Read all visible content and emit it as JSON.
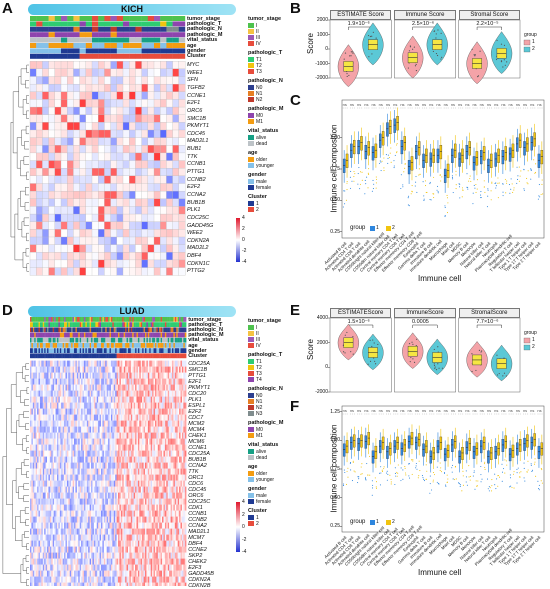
{
  "panels": {
    "A": "A",
    "B": "B",
    "C": "C",
    "D": "D",
    "E": "E",
    "F": "F"
  },
  "kich": {
    "title": "KICH",
    "annotation_rows": [
      "tumor_stage",
      "pathologic_T",
      "pathologic_N",
      "pathologic_M",
      "vital_status",
      "age",
      "gender",
      "Cluster"
    ],
    "genes": [
      "MYC",
      "WEE1",
      "SFN",
      "TGFB2",
      "CCNE1",
      "E2F1",
      "ORC6",
      "SMC1B",
      "PKMYT1",
      "CDC45",
      "MAD2L1",
      "BUB1",
      "TTK",
      "CCNB1",
      "PTTG1",
      "CCNB2",
      "E2F2",
      "CCNA2",
      "BUB1B",
      "PLK1",
      "CDC25C",
      "GADD45G",
      "WEE2",
      "CDKN2A",
      "MAD2L2",
      "DBF4",
      "CDKN1C",
      "PTTG2"
    ],
    "legend": {
      "tumor_stage": {
        "title": "tumor_stage",
        "items": [
          "I",
          "II",
          "III",
          "IV"
        ]
      },
      "pathologic_T": {
        "title": "pathologic_T",
        "items": [
          "T1",
          "T2",
          "T3"
        ]
      },
      "pathologic_N": {
        "title": "pathologic_N",
        "items": [
          "N0",
          "N1",
          "N2"
        ]
      },
      "pathologic_M": {
        "title": "pathologic_M",
        "items": [
          "M0",
          "M1"
        ]
      },
      "vital_status": {
        "title": "vital_status",
        "items": [
          "alive",
          "dead"
        ]
      },
      "age": {
        "title": "age",
        "items": [
          "older",
          "younger"
        ]
      },
      "gender": {
        "title": "gender",
        "items": [
          "male",
          "female"
        ]
      },
      "Cluster": {
        "title": "Cluster",
        "items": [
          "1",
          "2"
        ]
      }
    },
    "scale_ticks": [
      "4",
      "2",
      "0",
      "-2",
      "-4"
    ]
  },
  "luad": {
    "title": "LUAD",
    "annotation_rows": [
      "tumor_stage",
      "pathologic_T",
      "pathologic_N",
      "pathologic_M",
      "vital_status",
      "age",
      "gender",
      "Cluster"
    ],
    "genes": [
      "CDC25A",
      "SMC1B",
      "PTTG1",
      "E2F1",
      "PKMYT1",
      "CDC20",
      "PLK1",
      "ESPL1",
      "E2F2",
      "CDC7",
      "MCM2",
      "MCM4",
      "CHEK1",
      "MCM6",
      "CCNE1",
      "CDC25A",
      "BUB1B",
      "CCNA2",
      "TTK",
      "ORC1",
      "CDC6",
      "CDC45",
      "ORC6",
      "CDC25C",
      "CDK1",
      "CCNB1",
      "CCNB2",
      "CCNA2",
      "MAD2L1",
      "MCM7",
      "DBF4",
      "CCNE2",
      "SKP2",
      "CHEK2",
      "E2F3",
      "GADD45B",
      "CDKN2A",
      "CDKN2B"
    ],
    "legend": {
      "tumor_stage": {
        "title": "tumor_stage",
        "items": [
          "I",
          "II",
          "III",
          "IV"
        ]
      },
      "pathologic_T": {
        "title": "pathologic_T",
        "items": [
          "T1",
          "T2",
          "T3",
          "T4"
        ]
      },
      "pathologic_N": {
        "title": "pathologic_N",
        "items": [
          "N0",
          "N1",
          "N2",
          "N3"
        ]
      },
      "pathologic_M": {
        "title": "pathologic_M",
        "items": [
          "M0",
          "M1"
        ]
      },
      "vital_status": {
        "title": "vital_status",
        "items": [
          "alive",
          "dead"
        ]
      },
      "age": {
        "title": "age",
        "items": [
          "older",
          "younger"
        ]
      },
      "gender": {
        "title": "gender",
        "items": [
          "male",
          "female"
        ]
      },
      "Cluster": {
        "title": "Cluster",
        "items": [
          "1",
          "2"
        ]
      }
    },
    "scale_ticks": [
      "4",
      "2",
      "0",
      "-2",
      "-4"
    ]
  },
  "colors": {
    "stage": [
      "#4ec24e",
      "#f5c242",
      "#9b59b6",
      "#e74c3c"
    ],
    "T": [
      "#2ecc71",
      "#f1c40f",
      "#e74c3c",
      "#8e44ad"
    ],
    "N": [
      "#2c3e8f",
      "#e67e22",
      "#c0392b",
      "#7f8c8d"
    ],
    "M": [
      "#8e44ad",
      "#f39c12"
    ],
    "vital": [
      "#16a085",
      "#bdc3c7"
    ],
    "age": [
      "#f39c12",
      "#85c1e9"
    ],
    "gender": [
      "#85c1e9",
      "#1f3a93"
    ],
    "cluster": [
      "#1f3a93",
      "#e74c3c"
    ],
    "g1_fill": "#f4a3a8",
    "g2_fill": "#5bc8d6",
    "box": "#f5e642",
    "c_g1": "#2e86de",
    "c_g2": "#f1c40f"
  },
  "chart_data": [
    {
      "id": "B",
      "type": "violin",
      "ylabel": "Score",
      "legend_title": "group",
      "groups": [
        "1",
        "2"
      ],
      "facets": [
        {
          "title": "ESTIMATE Score",
          "p": "1.9×10⁻⁶",
          "ylim": [
            -2000,
            2000
          ],
          "ticks": [
            2000,
            1000,
            0,
            -1000,
            -2000
          ],
          "median": [
            -1200,
            300
          ]
        },
        {
          "title": "Immune Score",
          "p": "2.5×10⁻⁶",
          "ylim": [
            -2000,
            2000
          ],
          "median": [
            -600,
            300
          ]
        },
        {
          "title": "Stromal Score",
          "p": "2.2×10⁻⁵",
          "ylim": [
            -2000,
            2000
          ],
          "median": [
            -1000,
            -300
          ]
        }
      ]
    },
    {
      "id": "C",
      "type": "boxplot",
      "ylabel": "Immune cell composition",
      "xlabel": "Immune cell",
      "legend_title": "group",
      "groups": [
        "1",
        "2"
      ],
      "yticks": [
        "1.00",
        "0.75",
        "0.50",
        "0.25"
      ],
      "categories": [
        "Activated B cell",
        "Activated CD4 T cell",
        "Activated CD8 T cell",
        "Activated dendritic cell",
        "CD56bright natural killer cell",
        "CD56dim natural killer cell",
        "Central memory CD4 T cell",
        "Central memory CD8 T cell",
        "Effector memeory CD4 T cell",
        "Effector memeory CD8 T cell",
        "Eosinophil",
        "Gamma delta T cell",
        "Immature B cell",
        "Immature dendritic cell",
        "Macrophage",
        "Mast cell",
        "MDSC",
        "Memory B cell",
        "Monocyte",
        "Natural killer cell",
        "Natural killer T cell",
        "Neutrophil",
        "Plasmacytoid dendritic cell",
        "Regulatory T cell",
        "T follicular helper cell",
        "Type 1 T helper cell",
        "Type 17 T helper cell",
        "Type 2 T helper cell"
      ],
      "median_g1": [
        0.78,
        0.9,
        0.93,
        0.89,
        0.88,
        0.98,
        1.07,
        1.1,
        0.93,
        0.77,
        0.89,
        0.82,
        0.83,
        0.86,
        0.7,
        0.86,
        0.83,
        0.89,
        0.8,
        0.85,
        0.78,
        0.83,
        0.85,
        0.87,
        0.95,
        0.92,
        0.96,
        0.82
      ],
      "median_g2": [
        0.82,
        0.93,
        0.96,
        0.92,
        0.9,
        1.0,
        1.09,
        1.12,
        0.96,
        0.8,
        0.92,
        0.86,
        0.86,
        0.89,
        0.74,
        0.9,
        0.86,
        0.92,
        0.84,
        0.88,
        0.82,
        0.86,
        0.88,
        0.9,
        0.98,
        0.95,
        0.99,
        0.85
      ],
      "signif": "ns"
    },
    {
      "id": "E",
      "type": "violin",
      "ylabel": "Score",
      "legend_title": "group",
      "groups": [
        "1",
        "2"
      ],
      "facets": [
        {
          "title": "ESTIMATEScore",
          "p": "1.5×10⁻⁶",
          "ylim": [
            -2000,
            4000
          ],
          "ticks": [
            4000,
            2000,
            0,
            -2000
          ],
          "median": [
            2000,
            1200
          ]
        },
        {
          "title": "ImmuneScore",
          "p": "0.0005",
          "ylim": [
            -2000,
            4000
          ],
          "median": [
            1300,
            800
          ]
        },
        {
          "title": "StromalScore",
          "p": "7.7×10⁻⁶",
          "ylim": [
            -2000,
            4000
          ],
          "median": [
            600,
            300
          ]
        }
      ]
    },
    {
      "id": "F",
      "type": "boxplot",
      "ylabel": "Immune cell composition",
      "xlabel": "Immune cell",
      "legend_title": "group",
      "groups": [
        "1",
        "2"
      ],
      "yticks": [
        "1.25",
        "1.00",
        "0.75",
        "0.50",
        "0.25"
      ],
      "categories": [
        "Activated B cell",
        "Activated CD4 T cell",
        "Activated CD8 T cell",
        "Activated dendritic cell",
        "CD56bright natural killer cell",
        "CD56dim natural killer cell",
        "Central memory CD4 T cell",
        "Central memory CD8 T cell",
        "Effector memeory CD4 T cell",
        "Effector memeory CD8 T cell",
        "Eosinophil",
        "Gamma delta T cell",
        "Immature B cell",
        "Immature dendritic cell",
        "Macrophage",
        "Mast cell",
        "MDSC",
        "Memory B cell",
        "Monocyte",
        "Natural killer cell",
        "Natural killer T cell",
        "Neutrophil",
        "Plasmacytoid dendritic cell",
        "Regulatory T cell",
        "T follicular helper cell",
        "Type 1 T helper cell",
        "Type 17 T helper cell",
        "Type 2 T helper cell"
      ],
      "median_g1": [
        0.92,
        0.98,
        0.97,
        0.99,
        0.86,
        0.95,
        0.9,
        0.95,
        0.93,
        0.99,
        0.98,
        0.92,
        0.86,
        0.95,
        0.88,
        0.96,
        0.86,
        0.94,
        0.9,
        0.95,
        0.86,
        0.9,
        0.96,
        0.88,
        0.93,
        0.97,
        0.98,
        0.9
      ],
      "median_g2": [
        0.95,
        1.0,
        1.0,
        1.02,
        0.9,
        0.98,
        0.93,
        0.98,
        0.96,
        1.02,
        1.01,
        0.95,
        0.89,
        0.98,
        0.91,
        0.99,
        0.89,
        0.97,
        0.93,
        0.98,
        0.89,
        0.93,
        0.99,
        0.91,
        0.96,
        1.0,
        1.01,
        0.93
      ],
      "signif": "ns"
    }
  ]
}
